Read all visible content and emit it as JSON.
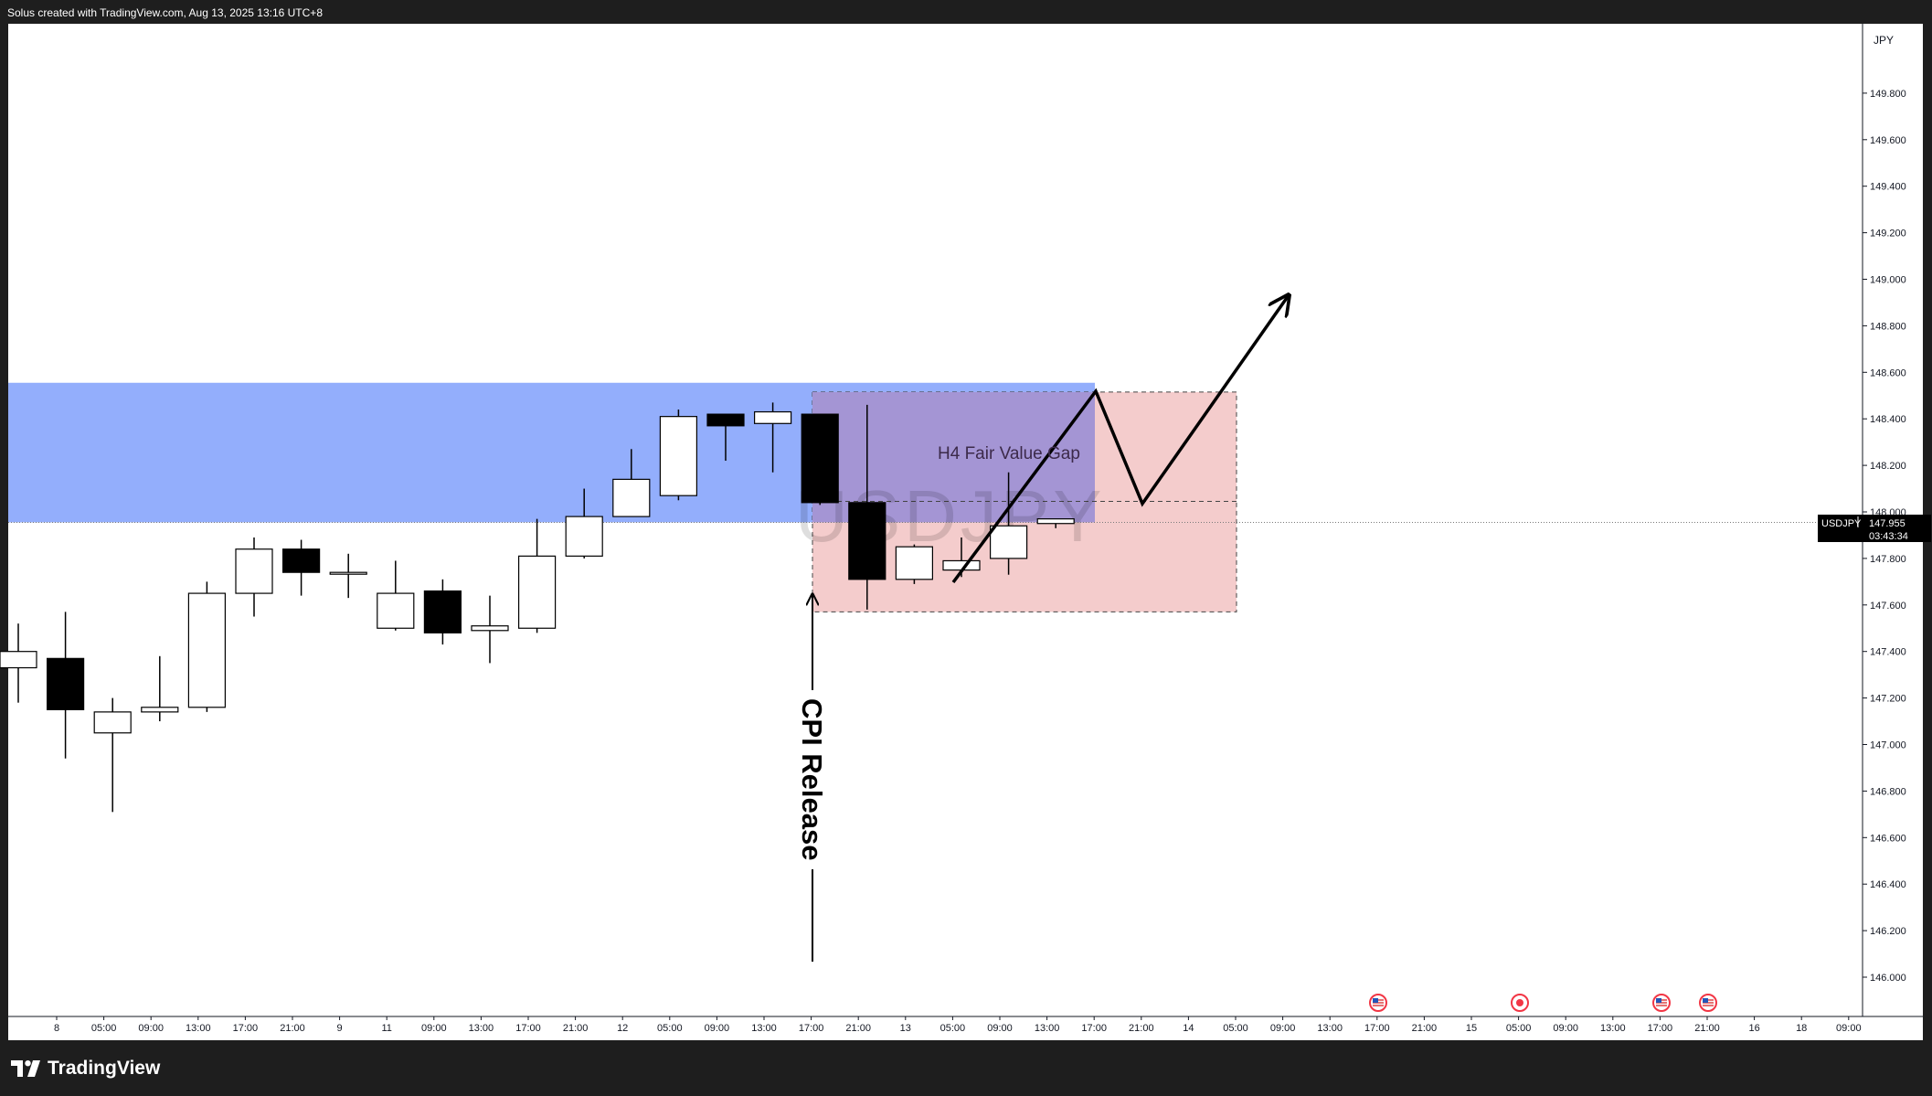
{
  "header": {
    "attribution": "Solus created with TradingView.com, Aug 13, 2025 13:16 UTC+8"
  },
  "branding": {
    "logo_text": "TradingView"
  },
  "price_axis": {
    "currency": "JPY"
  },
  "symbol_tag": {
    "symbol": "USDJPY",
    "price": "147.955",
    "countdown": "03:43:34"
  },
  "watermark": "USDJPY",
  "annotations": {
    "fvg_label": "H4 Fair Value Gap",
    "event_label": "CPI Release"
  },
  "colors": {
    "up_body": "#ffffff",
    "down_body": "#000000",
    "outline": "#000000",
    "resistance_zone": "#93aefc",
    "overlap_zone": "#a495d4",
    "fvg_zone": "#f4cccc",
    "price_line": "#7a7a7a",
    "accent": "#2962ff"
  },
  "event_icons": [
    "us-flag-icon",
    "event-dot-icon",
    "us-flag-icon",
    "us-flag-icon"
  ],
  "chart_data": {
    "type": "candlestick",
    "timeframe": "4H",
    "symbol": "USDJPY",
    "ylim": [
      145.9,
      150.15
    ],
    "y_ticks": [
      "149.800",
      "149.600",
      "149.400",
      "149.200",
      "149.000",
      "148.800",
      "148.600",
      "148.400",
      "148.200",
      "148.000",
      "147.800",
      "147.600",
      "147.400",
      "147.200",
      "147.000",
      "146.800",
      "146.600",
      "146.400",
      "146.200",
      "146.000"
    ],
    "x_ticks": [
      "8",
      "05:00",
      "09:00",
      "13:00",
      "17:00",
      "21:00",
      "9",
      "11",
      "09:00",
      "13:00",
      "17:00",
      "21:00",
      "12",
      "05:00",
      "09:00",
      "13:00",
      "17:00",
      "21:00",
      "13",
      "05:00",
      "09:00",
      "13:00",
      "17:00",
      "21:00",
      "14",
      "05:00",
      "09:00",
      "13:00",
      "17:00",
      "21:00",
      "15",
      "05:00",
      "09:00",
      "13:00",
      "17:00",
      "21:00",
      "16",
      "18",
      "09:00"
    ],
    "candles": [
      {
        "o": 147.33,
        "h": 147.52,
        "l": 147.18,
        "c": 147.4
      },
      {
        "o": 147.37,
        "h": 147.57,
        "l": 146.94,
        "c": 147.15
      },
      {
        "o": 147.05,
        "h": 147.2,
        "l": 146.71,
        "c": 147.14
      },
      {
        "o": 147.14,
        "h": 147.38,
        "l": 147.1,
        "c": 147.16
      },
      {
        "o": 147.16,
        "h": 147.7,
        "l": 147.14,
        "c": 147.65
      },
      {
        "o": 147.65,
        "h": 147.89,
        "l": 147.55,
        "c": 147.84
      },
      {
        "o": 147.84,
        "h": 147.88,
        "l": 147.64,
        "c": 147.74
      },
      {
        "o": 147.74,
        "h": 147.82,
        "l": 147.63,
        "c": 147.74
      },
      {
        "o": 147.5,
        "h": 147.79,
        "l": 147.49,
        "c": 147.65
      },
      {
        "o": 147.66,
        "h": 147.71,
        "l": 147.43,
        "c": 147.48
      },
      {
        "o": 147.49,
        "h": 147.64,
        "l": 147.35,
        "c": 147.51
      },
      {
        "o": 147.5,
        "h": 147.97,
        "l": 147.48,
        "c": 147.81
      },
      {
        "o": 147.81,
        "h": 148.1,
        "l": 147.8,
        "c": 147.98
      },
      {
        "o": 147.98,
        "h": 148.27,
        "l": 147.98,
        "c": 148.14
      },
      {
        "o": 148.07,
        "h": 148.44,
        "l": 148.05,
        "c": 148.41
      },
      {
        "o": 148.42,
        "h": 148.42,
        "l": 148.22,
        "c": 148.37
      },
      {
        "o": 148.38,
        "h": 148.47,
        "l": 148.17,
        "c": 148.43
      },
      {
        "o": 148.42,
        "h": 148.42,
        "l": 148.03,
        "c": 148.04
      },
      {
        "o": 148.04,
        "h": 148.46,
        "l": 147.58,
        "c": 147.71
      },
      {
        "o": 147.71,
        "h": 147.86,
        "l": 147.69,
        "c": 147.85
      },
      {
        "o": 147.75,
        "h": 147.89,
        "l": 147.72,
        "c": 147.79
      },
      {
        "o": 147.8,
        "h": 148.17,
        "l": 147.73,
        "c": 147.94
      },
      {
        "o": 147.95,
        "h": 147.97,
        "l": 147.93,
        "c": 147.97
      }
    ],
    "zones": {
      "resistance": [
        147.955,
        148.555
      ],
      "fvg": [
        147.57,
        148.515
      ],
      "fvg_midline": 148.045
    },
    "last_price": 147.955
  }
}
